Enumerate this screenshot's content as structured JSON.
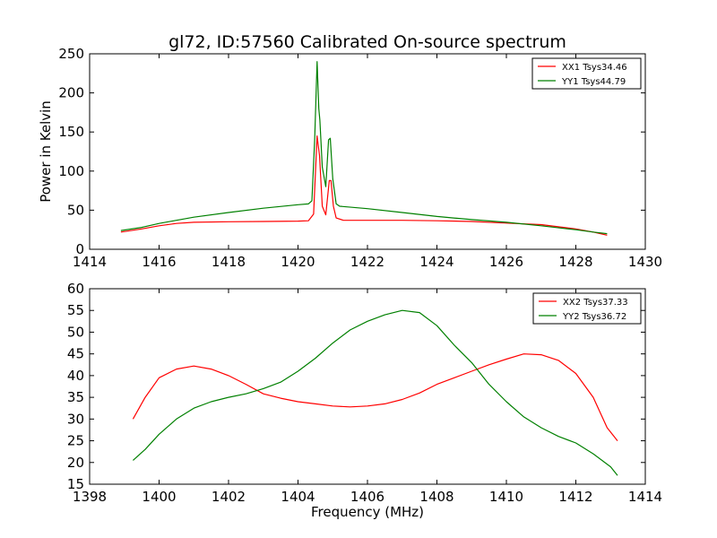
{
  "title": "gl72, ID:57560 Calibrated On-source spectrum",
  "colors": {
    "xx": "#ff0000",
    "yy": "#008000"
  },
  "chart_data": [
    {
      "type": "line",
      "id": "top",
      "xlabel": "",
      "ylabel": "Power in Kelvin",
      "xlim": [
        1414,
        1430
      ],
      "ylim": [
        0,
        250
      ],
      "xticks": [
        1414,
        1416,
        1418,
        1420,
        1422,
        1424,
        1426,
        1428,
        1430
      ],
      "yticks": [
        0,
        50,
        100,
        150,
        200,
        250
      ],
      "grid": false,
      "legend_position": "top-right",
      "series": [
        {
          "name": "XX1 Tsys34.46",
          "color": "#ff0000",
          "points": [
            [
              1414.9,
              22
            ],
            [
              1415.5,
              26
            ],
            [
              1416,
              30
            ],
            [
              1416.5,
              33
            ],
            [
              1417,
              34.5
            ],
            [
              1418,
              35.2
            ],
            [
              1419,
              35.5
            ],
            [
              1420,
              36
            ],
            [
              1420.3,
              36.5
            ],
            [
              1420.45,
              45
            ],
            [
              1420.55,
              145
            ],
            [
              1420.62,
              120
            ],
            [
              1420.7,
              55
            ],
            [
              1420.8,
              44
            ],
            [
              1420.9,
              88
            ],
            [
              1420.95,
              88
            ],
            [
              1421.02,
              55
            ],
            [
              1421.1,
              40
            ],
            [
              1421.3,
              37.2
            ],
            [
              1422,
              37
            ],
            [
              1423,
              37
            ],
            [
              1424,
              36.5
            ],
            [
              1425,
              35.5
            ],
            [
              1426,
              33.5
            ],
            [
              1427,
              31.5
            ],
            [
              1428,
              26
            ],
            [
              1428.5,
              22
            ],
            [
              1428.9,
              18
            ]
          ]
        },
        {
          "name": "YY1 Tsys44.79",
          "color": "#008000",
          "points": [
            [
              1414.9,
              24
            ],
            [
              1415.5,
              28
            ],
            [
              1416,
              33
            ],
            [
              1416.5,
              37
            ],
            [
              1417,
              41
            ],
            [
              1418,
              47
            ],
            [
              1419,
              52.5
            ],
            [
              1420,
              57
            ],
            [
              1420.3,
              58
            ],
            [
              1420.4,
              62
            ],
            [
              1420.48,
              140
            ],
            [
              1420.55,
              240
            ],
            [
              1420.6,
              180
            ],
            [
              1420.63,
              165
            ],
            [
              1420.7,
              105
            ],
            [
              1420.8,
              80
            ],
            [
              1420.88,
              140
            ],
            [
              1420.93,
              142
            ],
            [
              1421,
              90
            ],
            [
              1421.1,
              58
            ],
            [
              1421.2,
              55
            ],
            [
              1422,
              52
            ],
            [
              1423,
              47
            ],
            [
              1424,
              42
            ],
            [
              1425,
              38
            ],
            [
              1426,
              34.5
            ],
            [
              1427,
              30
            ],
            [
              1428,
              25
            ],
            [
              1428.5,
              22
            ],
            [
              1428.9,
              20
            ]
          ]
        }
      ]
    },
    {
      "type": "line",
      "id": "bottom",
      "xlabel": "Frequency (MHz)",
      "ylabel": "",
      "xlim": [
        1398,
        1414
      ],
      "ylim": [
        15,
        60
      ],
      "xticks": [
        1398,
        1400,
        1402,
        1404,
        1406,
        1408,
        1410,
        1412,
        1414
      ],
      "yticks": [
        15,
        20,
        25,
        30,
        35,
        40,
        45,
        50,
        55,
        60
      ],
      "grid": false,
      "legend_position": "top-right",
      "series": [
        {
          "name": "XX2 Tsys37.33",
          "color": "#ff0000",
          "points": [
            [
              1399.25,
              30
            ],
            [
              1399.6,
              35
            ],
            [
              1400,
              39.5
            ],
            [
              1400.5,
              41.5
            ],
            [
              1401,
              42.2
            ],
            [
              1401.5,
              41.5
            ],
            [
              1402,
              40
            ],
            [
              1402.5,
              38
            ],
            [
              1403,
              35.8
            ],
            [
              1403.5,
              34.8
            ],
            [
              1404,
              34
            ],
            [
              1404.5,
              33.5
            ],
            [
              1405,
              33
            ],
            [
              1405.5,
              32.8
            ],
            [
              1406,
              33
            ],
            [
              1406.5,
              33.5
            ],
            [
              1407,
              34.5
            ],
            [
              1407.5,
              36
            ],
            [
              1408,
              38
            ],
            [
              1408.5,
              39.5
            ],
            [
              1409,
              41
            ],
            [
              1409.5,
              42.5
            ],
            [
              1410,
              43.8
            ],
            [
              1410.5,
              45
            ],
            [
              1411,
              44.8
            ],
            [
              1411.5,
              43.5
            ],
            [
              1412,
              40.5
            ],
            [
              1412.5,
              35
            ],
            [
              1412.9,
              28
            ],
            [
              1413.2,
              25
            ]
          ]
        },
        {
          "name": "YY2 Tsys36.72",
          "color": "#008000",
          "points": [
            [
              1399.25,
              20.5
            ],
            [
              1399.6,
              23
            ],
            [
              1400,
              26.5
            ],
            [
              1400.5,
              30
            ],
            [
              1401,
              32.5
            ],
            [
              1401.5,
              34
            ],
            [
              1402,
              35
            ],
            [
              1402.5,
              35.8
            ],
            [
              1403,
              37
            ],
            [
              1403.5,
              38.5
            ],
            [
              1404,
              41
            ],
            [
              1404.5,
              44
            ],
            [
              1405,
              47.5
            ],
            [
              1405.5,
              50.5
            ],
            [
              1406,
              52.5
            ],
            [
              1406.5,
              54
            ],
            [
              1407,
              55
            ],
            [
              1407.5,
              54.5
            ],
            [
              1408,
              51.5
            ],
            [
              1408.5,
              47
            ],
            [
              1409,
              43
            ],
            [
              1409.5,
              38
            ],
            [
              1410,
              34
            ],
            [
              1410.5,
              30.5
            ],
            [
              1411,
              28
            ],
            [
              1411.5,
              26
            ],
            [
              1412,
              24.5
            ],
            [
              1412.5,
              22
            ],
            [
              1413,
              19
            ],
            [
              1413.2,
              17
            ]
          ]
        }
      ]
    }
  ]
}
